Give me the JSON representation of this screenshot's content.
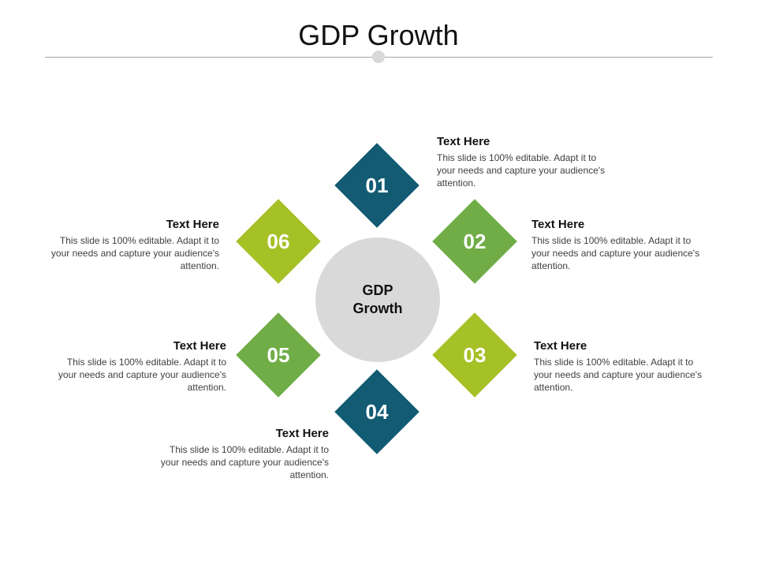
{
  "title": "GDP Growth",
  "center": {
    "line1": "GDP",
    "line2": "Growth"
  },
  "colors": {
    "teal": "#125b73",
    "green": "#70ad47",
    "lime": "#a5c126",
    "gray": "#d9d9d9"
  },
  "items": [
    {
      "num": "01",
      "heading": "Text Here",
      "body": "This slide is 100% editable. Adapt it to your needs and capture your audience's attention."
    },
    {
      "num": "02",
      "heading": "Text Here",
      "body": "This slide is 100% editable. Adapt it to your needs and capture your audience's attention."
    },
    {
      "num": "03",
      "heading": "Text Here",
      "body": "This slide is 100% editable. Adapt it to your needs and capture your audience's attention."
    },
    {
      "num": "04",
      "heading": "Text Here",
      "body": "This slide is 100% editable. Adapt it to your needs and capture your audience's attention."
    },
    {
      "num": "05",
      "heading": "Text Here",
      "body": "This slide is 100% editable. Adapt it to your needs and capture your audience's attention."
    },
    {
      "num": "06",
      "heading": "Text Here",
      "body": "This slide is 100% editable. Adapt it to your needs and capture your audience's attention."
    }
  ]
}
